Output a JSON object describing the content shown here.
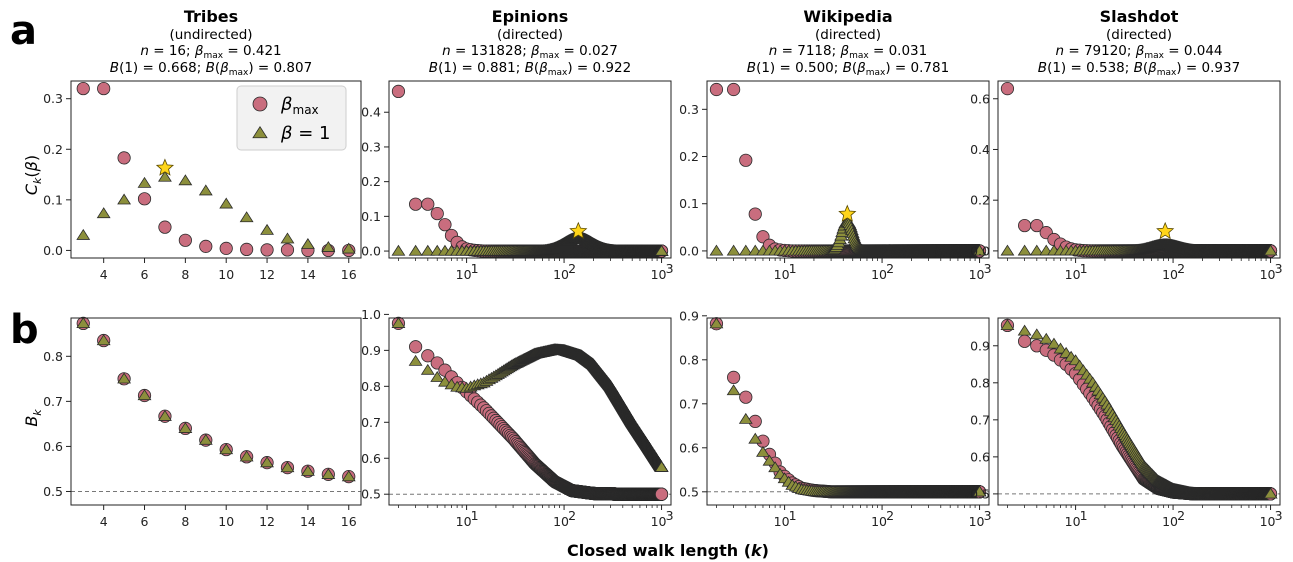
{
  "figure": {
    "panel_labels": [
      "a",
      "b"
    ],
    "xlabel": "Closed walk length (k)",
    "ylabel_top": "Ck(β)",
    "ylabel_bottom": "Bk",
    "legend": {
      "beta_max": "βmax",
      "beta_one": "β = 1"
    },
    "colors": {
      "beta_max": "#c96d7e",
      "beta_one": "#8c8f3c",
      "star": "#ffd51a",
      "edge": "#2b2b2b"
    }
  },
  "panels": [
    {
      "name": "Tribes",
      "type": "(undirected)",
      "n": "16",
      "beta_max": "0.421",
      "B1": "0.668",
      "Bbmax": "0.807"
    },
    {
      "name": "Epinions",
      "type": "(directed)",
      "n": "131828",
      "beta_max": "0.027",
      "B1": "0.881",
      "Bbmax": "0.922"
    },
    {
      "name": "Wikipedia",
      "type": "(directed)",
      "n": "7118",
      "beta_max": "0.031",
      "B1": "0.500",
      "Bbmax": "0.781"
    },
    {
      "name": "Slashdot",
      "type": "(directed)",
      "n": "79120",
      "beta_max": "0.044",
      "B1": "0.538",
      "Bbmax": "0.937"
    }
  ],
  "chart_data": [
    {
      "type": "scatter",
      "panel": "a",
      "network": "Tribes",
      "xscale": "linear",
      "xlim": [
        2.4,
        16.6
      ],
      "ylim": [
        -0.015,
        0.335
      ],
      "xticks": [
        4,
        6,
        8,
        10,
        12,
        14,
        16
      ],
      "yticks": [
        0.0,
        0.1,
        0.2,
        0.3
      ],
      "xticklabels": [
        "4",
        "6",
        "8",
        "10",
        "12",
        "14",
        "16"
      ],
      "yticklabels": [
        "0.0",
        "0.1",
        "0.2",
        "0.3"
      ],
      "legend_position": "top-right",
      "series": [
        {
          "name": "βmax",
          "x": [
            3,
            4,
            5,
            6,
            7,
            8,
            9,
            10,
            11,
            12,
            13,
            14,
            15,
            16
          ],
          "y": [
            0.32,
            0.32,
            0.183,
            0.102,
            0.046,
            0.02,
            0.008,
            0.004,
            0.002,
            0.001,
            0.001,
            0.0,
            0.0,
            0.0
          ]
        },
        {
          "name": "β = 1",
          "x": [
            3,
            4,
            5,
            6,
            7,
            8,
            9,
            10,
            11,
            12,
            13,
            14,
            15,
            16
          ],
          "y": [
            0.03,
            0.073,
            0.1,
            0.133,
            0.145,
            0.138,
            0.118,
            0.092,
            0.065,
            0.04,
            0.023,
            0.012,
            0.006,
            0.003
          ]
        }
      ],
      "star": {
        "x": 7,
        "y": 0.163
      }
    },
    {
      "type": "scatter",
      "panel": "a",
      "network": "Epinions",
      "xscale": "log",
      "xlim": [
        1.6,
        1250
      ],
      "ylim": [
        -0.02,
        0.49
      ],
      "xticks": [
        10,
        100,
        1000
      ],
      "yticks": [
        0.0,
        0.1,
        0.2,
        0.3,
        0.4
      ],
      "xticklabels": [
        "10^1",
        "10^2",
        "10^3"
      ],
      "yticklabels": [
        "0.0",
        "0.1",
        "0.2",
        "0.3",
        "0.4"
      ],
      "series": [
        {
          "name": "βmax",
          "x": [
            2,
            3,
            4,
            5,
            6,
            7,
            8,
            9,
            10,
            12,
            15,
            1000
          ],
          "y": [
            0.46,
            0.135,
            0.135,
            0.108,
            0.076,
            0.045,
            0.025,
            0.012,
            0.006,
            0.002,
            0.0,
            0.0
          ]
        },
        {
          "name": "β = 1",
          "peak_k": 140,
          "peak_y": 0.038,
          "peak_width_log10": 0.14,
          "last_x": 1000,
          "last_y": 0.0
        }
      ],
      "star": {
        "x": 140,
        "y": 0.057
      }
    },
    {
      "type": "scatter",
      "panel": "a",
      "network": "Wikipedia",
      "xscale": "log",
      "xlim": [
        1.6,
        1250
      ],
      "ylim": [
        -0.015,
        0.36
      ],
      "xticks": [
        10,
        100,
        1000
      ],
      "yticks": [
        0.0,
        0.1,
        0.2,
        0.3
      ],
      "xticklabels": [
        "10^1",
        "10^2",
        "10^3"
      ],
      "yticklabels": [
        "0.0",
        "0.1",
        "0.2",
        "0.3"
      ],
      "series": [
        {
          "name": "βmax",
          "x": [
            2,
            3,
            4,
            5,
            6,
            7,
            8,
            9,
            10,
            12,
            15,
            1000
          ],
          "y": [
            0.342,
            0.342,
            0.192,
            0.078,
            0.03,
            0.012,
            0.004,
            0.002,
            0.001,
            0.0,
            0.0,
            0.0
          ]
        },
        {
          "name": "β = 1",
          "peak_k": 44,
          "peak_y": 0.062,
          "peak_width_log10": 0.055,
          "last_x": 1000,
          "last_y": 0.0
        }
      ],
      "star": {
        "x": 44,
        "y": 0.078
      }
    },
    {
      "type": "scatter",
      "panel": "a",
      "network": "Slashdot",
      "xscale": "log",
      "xlim": [
        1.6,
        1250
      ],
      "ylim": [
        -0.028,
        0.67
      ],
      "xticks": [
        10,
        100,
        1000
      ],
      "yticks": [
        0.0,
        0.2,
        0.4,
        0.6
      ],
      "xticklabels": [
        "10^1",
        "10^2",
        "10^3"
      ],
      "yticklabels": [
        "0.0",
        "0.2",
        "0.4",
        "0.6"
      ],
      "series": [
        {
          "name": "βmax",
          "x": [
            2,
            3,
            4,
            5,
            6,
            7,
            8,
            9,
            10,
            12,
            15,
            1000
          ],
          "y": [
            0.64,
            0.1,
            0.1,
            0.072,
            0.045,
            0.027,
            0.015,
            0.008,
            0.004,
            0.001,
            0.0,
            0.0
          ]
        },
        {
          "name": "β = 1",
          "peak_k": 83,
          "peak_y": 0.025,
          "peak_width_log10": 0.14,
          "last_x": 1000,
          "last_y": 0.0
        }
      ],
      "star": {
        "x": 83,
        "y": 0.077
      }
    },
    {
      "type": "scatter",
      "panel": "b",
      "network": "Tribes",
      "xscale": "linear",
      "xlim": [
        2.4,
        16.6
      ],
      "ylim": [
        0.47,
        0.885
      ],
      "xticks": [
        4,
        6,
        8,
        10,
        12,
        14,
        16
      ],
      "yticks": [
        0.5,
        0.6,
        0.7,
        0.8
      ],
      "xticklabels": [
        "4",
        "6",
        "8",
        "10",
        "12",
        "14",
        "16"
      ],
      "yticklabels": [
        "0.5",
        "0.6",
        "0.7",
        "0.8"
      ],
      "reference_line": 0.5,
      "series": [
        {
          "name": "βmax",
          "x": [
            3,
            4,
            5,
            6,
            7,
            8,
            9,
            10,
            11,
            12,
            13,
            14,
            15,
            16
          ],
          "y": [
            0.873,
            0.835,
            0.75,
            0.713,
            0.667,
            0.64,
            0.614,
            0.593,
            0.577,
            0.564,
            0.553,
            0.545,
            0.538,
            0.533
          ]
        },
        {
          "name": "β = 1",
          "x": [
            3,
            4,
            5,
            6,
            7,
            8,
            9,
            10,
            11,
            12,
            13,
            14,
            15,
            16
          ],
          "y": [
            0.873,
            0.835,
            0.75,
            0.713,
            0.667,
            0.64,
            0.614,
            0.593,
            0.577,
            0.564,
            0.553,
            0.545,
            0.538,
            0.533
          ]
        }
      ]
    },
    {
      "type": "scatter",
      "panel": "b",
      "network": "Epinions",
      "xscale": "log",
      "xlim": [
        1.6,
        1250
      ],
      "ylim": [
        0.47,
        0.99
      ],
      "xticks": [
        10,
        100,
        1000
      ],
      "yticks": [
        0.5,
        0.6,
        0.7,
        0.8,
        0.9,
        1.0
      ],
      "xticklabels": [
        "10^1",
        "10^2",
        "10^3"
      ],
      "yticklabels": [
        "0.5",
        "0.6",
        "0.7",
        "0.8",
        "0.9",
        "1.0"
      ],
      "reference_line": 0.5,
      "series": [
        {
          "name": "βmax",
          "x": [
            2,
            3,
            4,
            5,
            6,
            8,
            10,
            15,
            20,
            30,
            50,
            80,
            120,
            200,
            400,
            1000
          ],
          "y": [
            0.975,
            0.91,
            0.885,
            0.865,
            0.845,
            0.81,
            0.785,
            0.74,
            0.705,
            0.655,
            0.585,
            0.535,
            0.51,
            0.502,
            0.5,
            0.5
          ]
        },
        {
          "name": "β = 1",
          "x": [
            2,
            3,
            4,
            5,
            6,
            8,
            10,
            15,
            20,
            30,
            50,
            80,
            100,
            150,
            200,
            300,
            500,
            700,
            1000
          ],
          "y": [
            0.975,
            0.87,
            0.845,
            0.825,
            0.812,
            0.798,
            0.795,
            0.81,
            0.83,
            0.86,
            0.89,
            0.902,
            0.9,
            0.885,
            0.86,
            0.8,
            0.7,
            0.64,
            0.575
          ]
        }
      ]
    },
    {
      "type": "scatter",
      "panel": "b",
      "network": "Wikipedia",
      "xscale": "log",
      "xlim": [
        1.6,
        1250
      ],
      "ylim": [
        0.47,
        0.895
      ],
      "xticks": [
        10,
        100,
        1000
      ],
      "yticks": [
        0.5,
        0.6,
        0.7,
        0.8,
        0.9
      ],
      "xticklabels": [
        "10^1",
        "10^2",
        "10^3"
      ],
      "yticklabels": [
        "0.5",
        "0.6",
        "0.7",
        "0.8",
        "0.9"
      ],
      "reference_line": 0.5,
      "series": [
        {
          "name": "βmax",
          "x": [
            2,
            3,
            4,
            5,
            6,
            7,
            8,
            9,
            10,
            12,
            15,
            20,
            30,
            50,
            100,
            1000
          ],
          "y": [
            0.882,
            0.76,
            0.715,
            0.66,
            0.615,
            0.585,
            0.565,
            0.545,
            0.535,
            0.52,
            0.508,
            0.503,
            0.5,
            0.5,
            0.5,
            0.5
          ]
        },
        {
          "name": "β = 1",
          "x": [
            2,
            3,
            4,
            5,
            6,
            7,
            8,
            9,
            10,
            12,
            15,
            20,
            30,
            50,
            100,
            1000
          ],
          "y": [
            0.882,
            0.73,
            0.665,
            0.62,
            0.59,
            0.57,
            0.555,
            0.54,
            0.53,
            0.515,
            0.505,
            0.501,
            0.5,
            0.5,
            0.5,
            0.5
          ]
        }
      ]
    },
    {
      "type": "scatter",
      "panel": "b",
      "network": "Slashdot",
      "xscale": "log",
      "xlim": [
        1.6,
        1250
      ],
      "ylim": [
        0.47,
        0.975
      ],
      "xticks": [
        10,
        100,
        1000
      ],
      "yticks": [
        0.5,
        0.6,
        0.7,
        0.8,
        0.9
      ],
      "xticklabels": [
        "10^1",
        "10^2",
        "10^3"
      ],
      "yticklabels": [
        "0.5",
        "0.6",
        "0.7",
        "0.8",
        "0.9"
      ],
      "reference_line": 0.5,
      "series": [
        {
          "name": "βmax",
          "x": [
            2,
            3,
            4,
            5,
            6,
            8,
            10,
            15,
            20,
            30,
            50,
            70,
            100,
            150,
            200,
            300,
            1000
          ],
          "y": [
            0.955,
            0.912,
            0.9,
            0.888,
            0.875,
            0.85,
            0.825,
            0.76,
            0.71,
            0.63,
            0.54,
            0.515,
            0.505,
            0.501,
            0.5,
            0.5,
            0.5
          ]
        },
        {
          "name": "β = 1",
          "x": [
            2,
            3,
            4,
            5,
            6,
            8,
            10,
            15,
            20,
            30,
            50,
            70,
            100,
            150,
            200,
            300,
            1000
          ],
          "y": [
            0.955,
            0.94,
            0.93,
            0.918,
            0.905,
            0.88,
            0.86,
            0.8,
            0.75,
            0.67,
            0.575,
            0.535,
            0.513,
            0.503,
            0.5,
            0.5,
            0.5
          ]
        }
      ]
    }
  ]
}
